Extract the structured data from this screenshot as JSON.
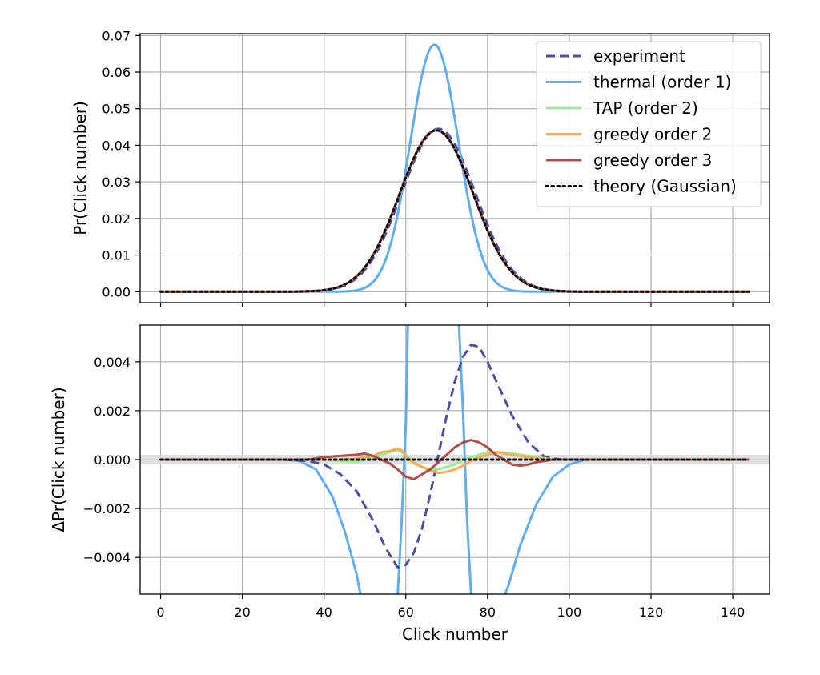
{
  "chart_data": [
    {
      "type": "line",
      "panel": "top",
      "title": "",
      "xlabel": "",
      "ylabel": "Pr(Click number)",
      "xlim": [
        -5,
        149
      ],
      "ylim": [
        -0.003,
        0.0705
      ],
      "xticks": [
        0,
        20,
        40,
        60,
        80,
        100,
        120,
        140
      ],
      "yticks": [
        0.0,
        0.01,
        0.02,
        0.03,
        0.04,
        0.05,
        0.06,
        0.07
      ],
      "ytick_labels": [
        "0.00",
        "0.01",
        "0.02",
        "0.03",
        "0.04",
        "0.05",
        "0.06",
        "0.07"
      ],
      "grid": true,
      "legend": {
        "location": "upper right",
        "entries": [
          {
            "label": "experiment",
            "color": "#45479a",
            "style": "dashed"
          },
          {
            "label": "thermal (order 1)",
            "color": "#5aaaea",
            "style": "solid"
          },
          {
            "label": "TAP (order 2)",
            "color": "#90ee90",
            "style": "solid"
          },
          {
            "label": "greedy order 2",
            "color": "#ffa64d",
            "style": "solid"
          },
          {
            "label": "greedy order 3",
            "color": "#a54a44",
            "style": "solid"
          },
          {
            "label": "theory (Gaussian)",
            "color": "#000000",
            "style": "dotted"
          }
        ]
      },
      "series": [
        {
          "name": "experiment",
          "x_range": [
            0,
            144
          ],
          "curve": "gaussian",
          "mean": 68,
          "sd": 9.0,
          "peak": 0.0445
        },
        {
          "name": "thermal (order 1)",
          "x_range": [
            0,
            144
          ],
          "curve": "gaussian",
          "mean": 67,
          "sd": 5.9,
          "peak": 0.0675
        },
        {
          "name": "TAP (order 2)",
          "x_range": [
            0,
            144
          ],
          "curve": "gaussian",
          "mean": 67.5,
          "sd": 9.0,
          "peak": 0.0441
        },
        {
          "name": "greedy order 2",
          "x_range": [
            0,
            144
          ],
          "curve": "gaussian",
          "mean": 67.5,
          "sd": 9.0,
          "peak": 0.0441
        },
        {
          "name": "greedy order 3",
          "x_range": [
            0,
            144
          ],
          "curve": "gaussian",
          "mean": 67.5,
          "sd": 9.0,
          "peak": 0.0441
        },
        {
          "name": "theory (Gaussian)",
          "x_range": [
            0,
            144
          ],
          "curve": "gaussian",
          "mean": 67.5,
          "sd": 9.0,
          "peak": 0.0441
        }
      ]
    },
    {
      "type": "line",
      "panel": "bottom",
      "title": "",
      "xlabel": "Click number",
      "ylabel": "ΔPr(Click number)",
      "xlim": [
        -5,
        149
      ],
      "ylim": [
        -0.0055,
        0.0055
      ],
      "xticks": [
        0,
        20,
        40,
        60,
        80,
        100,
        120,
        140
      ],
      "yticks": [
        -0.004,
        -0.002,
        0.0,
        0.002,
        0.004
      ],
      "ytick_labels": [
        "−0.004",
        "−0.002",
        "0.000",
        "0.002",
        "0.004"
      ],
      "grid": true,
      "zero_band": 0.0002,
      "series": [
        {
          "name": "experiment",
          "x": [
            0,
            30,
            36,
            40,
            44,
            48,
            52,
            55,
            58,
            60,
            62,
            64,
            66,
            68,
            70,
            72,
            74,
            76,
            78,
            80,
            83,
            86,
            90,
            94,
            98,
            102,
            144
          ],
          "y": [
            0,
            0,
            -5e-05,
            -0.0002,
            -0.0006,
            -0.0013,
            -0.0025,
            -0.0036,
            -0.0044,
            -0.0043,
            -0.0038,
            -0.0028,
            -0.0014,
            0.0002,
            0.0018,
            0.0032,
            0.0042,
            0.0047,
            0.0046,
            0.004,
            0.0029,
            0.0018,
            0.0007,
            0.0001,
            0,
            0,
            0
          ]
        },
        {
          "name": "thermal (order 1)",
          "x": [
            0,
            30,
            34,
            38,
            42,
            45,
            48,
            49,
            55,
            58,
            59,
            60,
            60.5,
            73,
            74,
            75,
            76,
            84,
            85,
            88,
            92,
            96,
            100,
            104,
            144
          ],
          "y": [
            0,
            0,
            -5e-05,
            -0.0004,
            -0.0015,
            -0.0029,
            -0.0047,
            -0.0056,
            -0.0056,
            -0.0056,
            -0.0025,
            0.0015,
            0.0056,
            0.0056,
            0.002,
            -0.0025,
            -0.0056,
            -0.0056,
            -0.0052,
            -0.0035,
            -0.0018,
            -0.0007,
            -0.0002,
            0,
            0
          ]
        },
        {
          "name": "TAP (order 2)",
          "x": [
            0,
            40,
            44,
            48,
            52,
            56,
            58,
            60,
            62,
            64,
            66,
            68,
            70,
            72,
            74,
            76,
            80,
            84,
            88,
            92,
            96,
            100,
            144
          ],
          "y": [
            0,
            0,
            -5e-05,
            -0.0001,
            0.0001,
            0.0003,
            0.0004,
            0.0002,
            -0.0001,
            -0.0003,
            -0.0004,
            -0.0004,
            -0.0003,
            -0.0002,
            0.0,
            0.0001,
            0.0003,
            0.0003,
            0.0002,
            0.0001,
            0,
            0,
            0
          ]
        },
        {
          "name": "greedy order 2",
          "x": [
            0,
            40,
            44,
            48,
            50,
            52,
            54,
            56,
            58,
            59,
            60,
            62,
            64,
            66,
            68,
            70,
            72,
            74,
            76,
            78,
            80,
            82,
            84,
            86,
            88,
            90,
            92,
            96,
            100,
            144
          ],
          "y": [
            0,
            0,
            0,
            5e-05,
            0.0001,
            0.00015,
            0.0003,
            0.00035,
            0.00045,
            0.00038,
            0.00012,
            -0.00015,
            -0.0003,
            -0.00045,
            -0.00055,
            -0.0005,
            -0.0004,
            -0.00025,
            -5e-05,
            0.0001,
            0.0002,
            0.0003,
            0.00025,
            0.0002,
            0.00015,
            0.0001,
            5e-05,
            0,
            0,
            0
          ]
        },
        {
          "name": "greedy order 3",
          "x": [
            0,
            36,
            40,
            44,
            48,
            50,
            52,
            54,
            56,
            58,
            60,
            62,
            64,
            66,
            68,
            70,
            72,
            74,
            76,
            78,
            80,
            82,
            84,
            86,
            88,
            90,
            92,
            96,
            100,
            144
          ],
          "y": [
            0,
            0,
            0.0001,
            0.00015,
            0.0002,
            0.00025,
            0.00015,
            0.0,
            -0.00015,
            -0.0004,
            -0.0007,
            -0.0008,
            -0.0006,
            -0.0004,
            -0.0001,
            0.0002,
            0.0005,
            0.0007,
            0.0008,
            0.0007,
            0.0005,
            0.0002,
            0.0,
            -0.0002,
            -0.00025,
            -0.0002,
            -0.0001,
            0,
            0,
            0
          ]
        },
        {
          "name": "theory (Gaussian)",
          "x": [
            0,
            144
          ],
          "y": [
            0,
            0
          ]
        }
      ]
    }
  ]
}
